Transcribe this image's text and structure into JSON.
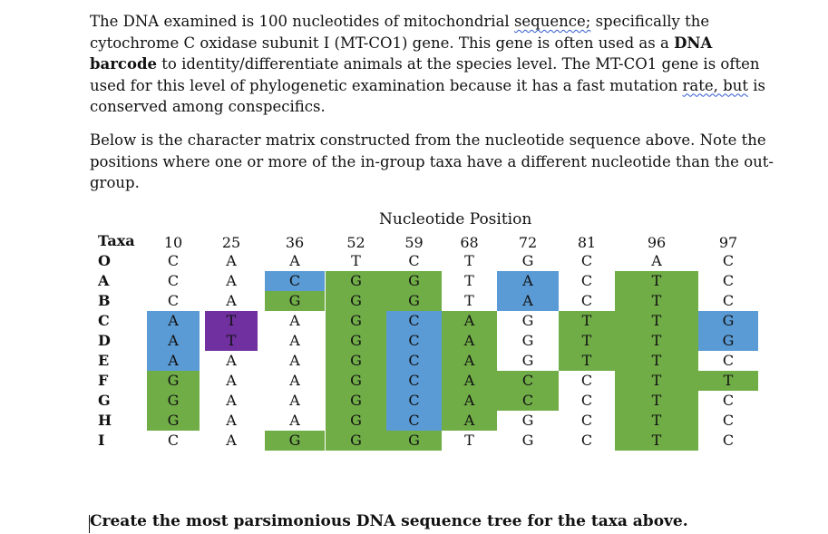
{
  "intro": {
    "t1": "The DNA examined is 100 nucleotides of mitochondrial ",
    "t2": "sequence;",
    "t3": " specifically the cytochrome C oxidase subunit I (MT-CO1) gene. This gene is often used as a ",
    "t4": "DNA barcode",
    "t5": " to identity/differentiate animals at the species level. The MT-CO1 gene is often used for this level of phylogenetic examination because it has a fast mutation ",
    "t6": "rate, but",
    "t7": " is conserved among conspecifics."
  },
  "note": "Below is the character matrix constructed from the nucleotide sequence above. Note the positions where one or more of the in-group taxa have a different nucleotide than the out-group.",
  "matrix": {
    "title": "Nucleotide Position",
    "taxa_header": "Taxa",
    "positions": [
      "10",
      "25",
      "36",
      "52",
      "59",
      "68",
      "72",
      "81",
      "96",
      "97"
    ],
    "colors": {
      "blue": "#5b9bd5",
      "green": "#70ad47",
      "purple": "#7030a0"
    },
    "rows": [
      {
        "taxon": "O",
        "bases": [
          "C",
          "A",
          "A",
          "T",
          "C",
          "T",
          "G",
          "C",
          "A",
          "C"
        ],
        "fills": [
          "",
          "",
          "",
          "",
          "",
          "",
          "",
          "",
          "",
          ""
        ]
      },
      {
        "taxon": "A",
        "bases": [
          "C",
          "A",
          "C",
          "G",
          "G",
          "T",
          "A",
          "C",
          "T",
          "C"
        ],
        "fills": [
          "",
          "",
          "blue",
          "green",
          "green",
          "",
          "blue",
          "",
          "green",
          ""
        ]
      },
      {
        "taxon": "B",
        "bases": [
          "C",
          "A",
          "G",
          "G",
          "G",
          "T",
          "A",
          "C",
          "T",
          "C"
        ],
        "fills": [
          "",
          "",
          "green",
          "green",
          "green",
          "",
          "blue",
          "",
          "green",
          ""
        ]
      },
      {
        "taxon": "C",
        "bases": [
          "A",
          "T",
          "A",
          "G",
          "C",
          "A",
          "G",
          "T",
          "T",
          "G"
        ],
        "fills": [
          "blue",
          "purple",
          "",
          "green",
          "blue",
          "green",
          "",
          "green",
          "green",
          "blue"
        ]
      },
      {
        "taxon": "D",
        "bases": [
          "A",
          "T",
          "A",
          "G",
          "C",
          "A",
          "G",
          "T",
          "T",
          "G"
        ],
        "fills": [
          "blue",
          "purple",
          "",
          "green",
          "blue",
          "green",
          "",
          "green",
          "green",
          "blue"
        ]
      },
      {
        "taxon": "E",
        "bases": [
          "A",
          "A",
          "A",
          "G",
          "C",
          "A",
          "G",
          "T",
          "T",
          "C"
        ],
        "fills": [
          "blue",
          "",
          "",
          "green",
          "blue",
          "green",
          "",
          "green",
          "green",
          ""
        ]
      },
      {
        "taxon": "F",
        "bases": [
          "G",
          "A",
          "A",
          "G",
          "C",
          "A",
          "C",
          "C",
          "T",
          "T"
        ],
        "fills": [
          "green",
          "",
          "",
          "green",
          "blue",
          "green",
          "green",
          "",
          "green",
          "green"
        ]
      },
      {
        "taxon": "G",
        "bases": [
          "G",
          "A",
          "A",
          "G",
          "C",
          "A",
          "C",
          "C",
          "T",
          "C"
        ],
        "fills": [
          "green",
          "",
          "",
          "green",
          "blue",
          "green",
          "green",
          "",
          "green",
          ""
        ]
      },
      {
        "taxon": "H",
        "bases": [
          "G",
          "A",
          "A",
          "G",
          "C",
          "A",
          "G",
          "C",
          "T",
          "C"
        ],
        "fills": [
          "green",
          "",
          "",
          "green",
          "blue",
          "green",
          "",
          "",
          "green",
          ""
        ]
      },
      {
        "taxon": "I",
        "bases": [
          "C",
          "A",
          "G",
          "G",
          "G",
          "T",
          "G",
          "C",
          "T",
          "C"
        ],
        "fills": [
          "",
          "",
          "green",
          "green",
          "green",
          "",
          "",
          "",
          "green",
          ""
        ]
      }
    ]
  },
  "prompt": "Create the most parsimonious DNA sequence tree for the taxa above."
}
